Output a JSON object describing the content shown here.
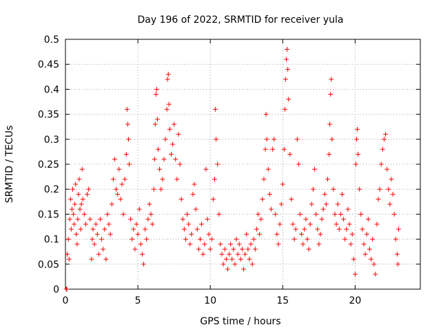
{
  "chart_data": {
    "type": "scatter",
    "title": "Day 196 of 2022, SRMTID for receiver yula",
    "xlabel": "GPS time / hours",
    "ylabel": "SRMTID / TECUs",
    "xlim": [
      0,
      24.5
    ],
    "ylim": [
      0,
      0.5
    ],
    "x_ticks": [
      0,
      5,
      10,
      15,
      20
    ],
    "x_tick_labels": [
      "0",
      "5",
      "10",
      "15",
      "20"
    ],
    "y_ticks": [
      0,
      0.05,
      0.1,
      0.15,
      0.2,
      0.25,
      0.3,
      0.35,
      0.4,
      0.45,
      0.5
    ],
    "y_tick_labels": [
      "0",
      "0.05",
      "0.1",
      "0.15",
      "0.2",
      "0.25",
      "0.3",
      "0.35",
      "0.4",
      "0.45",
      "0.5"
    ],
    "grid": true,
    "marker": "plus",
    "color": "#ff0000",
    "series": [
      {
        "name": "SRMTID",
        "points": [
          [
            0.05,
            0.0
          ],
          [
            0.1,
            0.0
          ],
          [
            0.12,
            0.07
          ],
          [
            0.2,
            0.1
          ],
          [
            0.25,
            0.06
          ],
          [
            0.3,
            0.14
          ],
          [
            0.35,
            0.18
          ],
          [
            0.4,
            0.12
          ],
          [
            0.45,
            0.16
          ],
          [
            0.5,
            0.2
          ],
          [
            0.55,
            0.15
          ],
          [
            0.6,
            0.13
          ],
          [
            0.65,
            0.17
          ],
          [
            0.7,
            0.21
          ],
          [
            0.75,
            0.11
          ],
          [
            0.8,
            0.09
          ],
          [
            0.85,
            0.14
          ],
          [
            0.9,
            0.19
          ],
          [
            0.95,
            0.22
          ],
          [
            1.0,
            0.16
          ],
          [
            1.05,
            0.12
          ],
          [
            1.1,
            0.17
          ],
          [
            1.15,
            0.24
          ],
          [
            1.2,
            0.18
          ],
          [
            1.3,
            0.15
          ],
          [
            1.4,
            0.13
          ],
          [
            1.5,
            0.19
          ],
          [
            1.6,
            0.2
          ],
          [
            1.7,
            0.14
          ],
          [
            1.8,
            0.06
          ],
          [
            1.85,
            0.1
          ],
          [
            1.9,
            0.12
          ],
          [
            2.0,
            0.09
          ],
          [
            2.1,
            0.13
          ],
          [
            2.2,
            0.11
          ],
          [
            2.3,
            0.07
          ],
          [
            2.4,
            0.14
          ],
          [
            2.5,
            0.1
          ],
          [
            2.6,
            0.08
          ],
          [
            2.7,
            0.12
          ],
          [
            2.8,
            0.06
          ],
          [
            2.9,
            0.15
          ],
          [
            3.0,
            0.13
          ],
          [
            3.1,
            0.11
          ],
          [
            3.2,
            0.17
          ],
          [
            3.3,
            0.22
          ],
          [
            3.4,
            0.26
          ],
          [
            3.5,
            0.2
          ],
          [
            3.6,
            0.19
          ],
          [
            3.7,
            0.24
          ],
          [
            3.8,
            0.18
          ],
          [
            3.9,
            0.21
          ],
          [
            4.0,
            0.15
          ],
          [
            4.1,
            0.22
          ],
          [
            4.2,
            0.27
          ],
          [
            4.25,
            0.36
          ],
          [
            4.3,
            0.33
          ],
          [
            4.35,
            0.3
          ],
          [
            4.4,
            0.25
          ],
          [
            4.5,
            0.14
          ],
          [
            4.6,
            0.1
          ],
          [
            4.7,
            0.12
          ],
          [
            4.8,
            0.08
          ],
          [
            4.9,
            0.13
          ],
          [
            5.0,
            0.11
          ],
          [
            5.1,
            0.16
          ],
          [
            5.2,
            0.09
          ],
          [
            5.3,
            0.07
          ],
          [
            5.4,
            0.05
          ],
          [
            5.5,
            0.12
          ],
          [
            5.6,
            0.1
          ],
          [
            5.7,
            0.14
          ],
          [
            5.8,
            0.17
          ],
          [
            5.9,
            0.15
          ],
          [
            6.0,
            0.13
          ],
          [
            6.1,
            0.2
          ],
          [
            6.15,
            0.26
          ],
          [
            6.2,
            0.33
          ],
          [
            6.25,
            0.39
          ],
          [
            6.3,
            0.4
          ],
          [
            6.35,
            0.34
          ],
          [
            6.4,
            0.28
          ],
          [
            6.5,
            0.24
          ],
          [
            6.6,
            0.2
          ],
          [
            6.7,
            0.22
          ],
          [
            6.8,
            0.26
          ],
          [
            6.9,
            0.3
          ],
          [
            7.0,
            0.36
          ],
          [
            7.05,
            0.42
          ],
          [
            7.1,
            0.43
          ],
          [
            7.15,
            0.37
          ],
          [
            7.2,
            0.32
          ],
          [
            7.3,
            0.27
          ],
          [
            7.4,
            0.29
          ],
          [
            7.5,
            0.33
          ],
          [
            7.6,
            0.26
          ],
          [
            7.7,
            0.22
          ],
          [
            7.8,
            0.31
          ],
          [
            7.9,
            0.25
          ],
          [
            8.0,
            0.18
          ],
          [
            8.1,
            0.14
          ],
          [
            8.2,
            0.12
          ],
          [
            8.3,
            0.1
          ],
          [
            8.4,
            0.15
          ],
          [
            8.5,
            0.13
          ],
          [
            8.6,
            0.09
          ],
          [
            8.7,
            0.11
          ],
          [
            8.8,
            0.19
          ],
          [
            8.9,
            0.21
          ],
          [
            9.0,
            0.16
          ],
          [
            9.1,
            0.12
          ],
          [
            9.2,
            0.08
          ],
          [
            9.3,
            0.1
          ],
          [
            9.4,
            0.13
          ],
          [
            9.5,
            0.07
          ],
          [
            9.6,
            0.09
          ],
          [
            9.7,
            0.24
          ],
          [
            9.8,
            0.14
          ],
          [
            9.9,
            0.11
          ],
          [
            10.0,
            0.08
          ],
          [
            10.1,
            0.1
          ],
          [
            10.2,
            0.18
          ],
          [
            10.3,
            0.22
          ],
          [
            10.35,
            0.36
          ],
          [
            10.4,
            0.3
          ],
          [
            10.5,
            0.25
          ],
          [
            10.6,
            0.15
          ],
          [
            10.7,
            0.09
          ],
          [
            10.8,
            0.07
          ],
          [
            10.9,
            0.05
          ],
          [
            11.0,
            0.08
          ],
          [
            11.1,
            0.06
          ],
          [
            11.2,
            0.04
          ],
          [
            11.3,
            0.07
          ],
          [
            11.4,
            0.09
          ],
          [
            11.5,
            0.06
          ],
          [
            11.6,
            0.08
          ],
          [
            11.7,
            0.05
          ],
          [
            11.8,
            0.1
          ],
          [
            11.9,
            0.07
          ],
          [
            12.0,
            0.09
          ],
          [
            12.1,
            0.06
          ],
          [
            12.2,
            0.08
          ],
          [
            12.3,
            0.04
          ],
          [
            12.4,
            0.07
          ],
          [
            12.5,
            0.11
          ],
          [
            12.6,
            0.08
          ],
          [
            12.7,
            0.06
          ],
          [
            12.8,
            0.09
          ],
          [
            12.9,
            0.05
          ],
          [
            13.0,
            0.1
          ],
          [
            13.1,
            0.08
          ],
          [
            13.2,
            0.12
          ],
          [
            13.3,
            0.15
          ],
          [
            13.4,
            0.11
          ],
          [
            13.5,
            0.14
          ],
          [
            13.6,
            0.18
          ],
          [
            13.7,
            0.22
          ],
          [
            13.8,
            0.28
          ],
          [
            13.85,
            0.35
          ],
          [
            13.9,
            0.3
          ],
          [
            14.0,
            0.24
          ],
          [
            14.1,
            0.19
          ],
          [
            14.2,
            0.16
          ],
          [
            14.3,
            0.28
          ],
          [
            14.4,
            0.3
          ],
          [
            14.5,
            0.15
          ],
          [
            14.6,
            0.11
          ],
          [
            14.7,
            0.09
          ],
          [
            14.8,
            0.13
          ],
          [
            14.9,
            0.17
          ],
          [
            15.0,
            0.21
          ],
          [
            15.1,
            0.28
          ],
          [
            15.15,
            0.36
          ],
          [
            15.2,
            0.42
          ],
          [
            15.25,
            0.46
          ],
          [
            15.3,
            0.48
          ],
          [
            15.35,
            0.44
          ],
          [
            15.4,
            0.38
          ],
          [
            15.5,
            0.27
          ],
          [
            15.6,
            0.18
          ],
          [
            15.7,
            0.13
          ],
          [
            15.8,
            0.1
          ],
          [
            15.9,
            0.12
          ],
          [
            16.0,
            0.3
          ],
          [
            16.1,
            0.25
          ],
          [
            16.2,
            0.15
          ],
          [
            16.3,
            0.11
          ],
          [
            16.4,
            0.09
          ],
          [
            16.5,
            0.12
          ],
          [
            16.6,
            0.14
          ],
          [
            16.7,
            0.1
          ],
          [
            16.8,
            0.08
          ],
          [
            16.9,
            0.13
          ],
          [
            17.0,
            0.17
          ],
          [
            17.1,
            0.2
          ],
          [
            17.2,
            0.24
          ],
          [
            17.3,
            0.15
          ],
          [
            17.4,
            0.12
          ],
          [
            17.5,
            0.09
          ],
          [
            17.6,
            0.11
          ],
          [
            17.7,
            0.14
          ],
          [
            17.8,
            0.16
          ],
          [
            17.9,
            0.19
          ],
          [
            18.0,
            0.17
          ],
          [
            18.1,
            0.22
          ],
          [
            18.2,
            0.27
          ],
          [
            18.25,
            0.33
          ],
          [
            18.3,
            0.39
          ],
          [
            18.35,
            0.42
          ],
          [
            18.4,
            0.3
          ],
          [
            18.5,
            0.2
          ],
          [
            18.6,
            0.15
          ],
          [
            18.7,
            0.13
          ],
          [
            18.8,
            0.17
          ],
          [
            18.9,
            0.12
          ],
          [
            19.0,
            0.15
          ],
          [
            19.1,
            0.19
          ],
          [
            19.2,
            0.14
          ],
          [
            19.3,
            0.1
          ],
          [
            19.4,
            0.12
          ],
          [
            19.5,
            0.16
          ],
          [
            19.6,
            0.13
          ],
          [
            19.7,
            0.09
          ],
          [
            19.8,
            0.11
          ],
          [
            19.9,
            0.06
          ],
          [
            20.0,
            0.03
          ],
          [
            20.05,
            0.25
          ],
          [
            20.1,
            0.3
          ],
          [
            20.15,
            0.32
          ],
          [
            20.2,
            0.27
          ],
          [
            20.3,
            0.2
          ],
          [
            20.4,
            0.15
          ],
          [
            20.5,
            0.12
          ],
          [
            20.6,
            0.09
          ],
          [
            20.7,
            0.07
          ],
          [
            20.8,
            0.11
          ],
          [
            20.9,
            0.14
          ],
          [
            21.0,
            0.08
          ],
          [
            21.1,
            0.06
          ],
          [
            21.2,
            0.1
          ],
          [
            21.3,
            0.05
          ],
          [
            21.4,
            0.03
          ],
          [
            21.5,
            0.13
          ],
          [
            21.6,
            0.18
          ],
          [
            21.7,
            0.2
          ],
          [
            21.8,
            0.25
          ],
          [
            21.9,
            0.28
          ],
          [
            22.0,
            0.3
          ],
          [
            22.1,
            0.31
          ],
          [
            22.2,
            0.24
          ],
          [
            22.3,
            0.2
          ],
          [
            22.4,
            0.17
          ],
          [
            22.5,
            0.22
          ],
          [
            22.6,
            0.19
          ],
          [
            22.7,
            0.15
          ],
          [
            22.8,
            0.1
          ],
          [
            22.9,
            0.07
          ],
          [
            22.95,
            0.05
          ],
          [
            23.0,
            0.12
          ]
        ]
      }
    ]
  }
}
